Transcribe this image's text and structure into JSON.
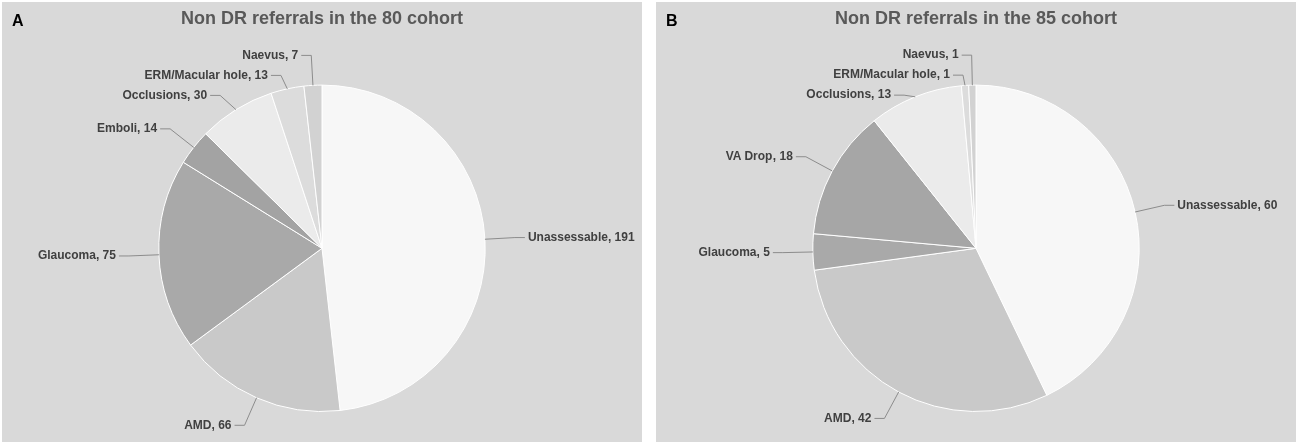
{
  "chart_data": [
    {
      "type": "pie",
      "title": "Non DR referrals in the 80 cohort",
      "annotations": [
        "A"
      ],
      "value_labels": [
        ", 191",
        ", 66",
        ", 75",
        ", 14",
        ", 30",
        ", 13",
        ", 7"
      ],
      "categories": [
        "Unassessable",
        "AMD",
        "Glaucoma",
        "Emboli",
        "Occlusions",
        "ERM/Macular hole",
        "Naevus"
      ],
      "values": [
        191,
        66,
        75,
        14,
        30,
        13,
        7
      ],
      "colors": [
        "#f7f7f7",
        "#c9c9c9",
        "#a9a9a9",
        "#a3a3a3",
        "#ebebeb",
        "#dcdcdc",
        "#d2d2d2"
      ]
    },
    {
      "type": "pie",
      "title": "Non DR referrals in the 85 cohort",
      "annotations": [
        "B"
      ],
      "value_labels": [
        ", 60",
        ", 42",
        ", 5",
        ", 18",
        ", 13",
        ", 1",
        ", 1"
      ],
      "categories": [
        "Unassessable",
        "AMD",
        "Glaucoma",
        "VA Drop",
        "Occlusions",
        "ERM/Macular hole",
        "Naevus"
      ],
      "values": [
        60,
        42,
        5,
        18,
        13,
        1,
        1
      ],
      "colors": [
        "#f7f7f7",
        "#c9c9c9",
        "#a9a9a9",
        "#a6a6a6",
        "#ebebeb",
        "#dcdcdc",
        "#d2d2d2"
      ]
    }
  ]
}
